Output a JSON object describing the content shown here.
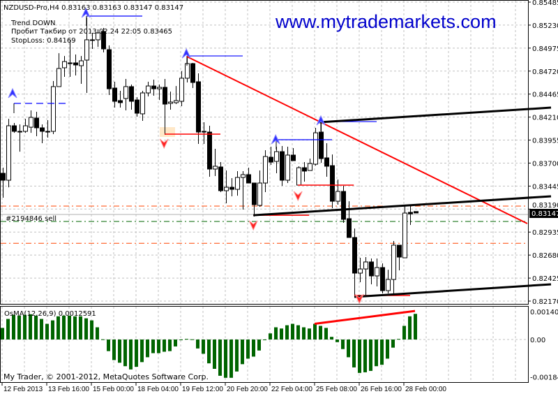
{
  "chart_data": {
    "type": "candlestick",
    "symbol_header": "NZDUSD-Pro,H4  0.83163 0.83163 0.83147 0.83147",
    "info_lines": [
      "Trend DOWN",
      "Пробит  Такбир от 2013.02.24 22:05 0.83465",
      "StopLoss: 0.84169"
    ],
    "watermark": "www.mytrademarkets.com",
    "copyright": "My Trader, © 2001-2012, MetaQuotes Software Corp.",
    "order_label": "#2194846 sell",
    "current_price": "0.83147",
    "price_ticks": [
      "0.85485",
      "0.85230",
      "0.84975",
      "0.84720",
      "0.84465",
      "0.84210",
      "0.83955",
      "0.83700",
      "0.83445",
      "0.83190",
      "0.82935",
      "0.82680",
      "0.82425",
      "0.82170"
    ],
    "price_range": [
      0.8217,
      0.85485
    ],
    "time_ticks": [
      {
        "bar": 0,
        "label": "12 Feb 2013"
      },
      {
        "bar": 8,
        "label": "13 Feb 16:00"
      },
      {
        "bar": 16,
        "label": "15 Feb 00:00"
      },
      {
        "bar": 24,
        "label": "18 Feb 04:00"
      },
      {
        "bar": 32,
        "label": "19 Feb 12:00"
      },
      {
        "bar": 40,
        "label": "20 Feb 20:00"
      },
      {
        "bar": 48,
        "label": "22 Feb 04:00"
      },
      {
        "bar": 56,
        "label": "25 Feb 08:00"
      },
      {
        "bar": 64,
        "label": "26 Feb 16:00"
      },
      {
        "bar": 72,
        "label": "28 Feb 00:00"
      }
    ],
    "grid": true,
    "colors": {
      "bull_body": "#ffffff",
      "bear_body": "#000000",
      "trendline": "#ff0000",
      "channel": "#000000",
      "level_blue": "#0000ff",
      "level_red": "#ff0000",
      "osma": "#006400",
      "dash_orange": "#ff4500",
      "dash_green": "#006400",
      "price_box": "#000000"
    },
    "ohlc": [
      [
        0.83587,
        0.83649,
        0.83316,
        0.8351
      ],
      [
        0.8351,
        0.84191,
        0.83432,
        0.84114
      ],
      [
        0.84114,
        0.84145,
        0.84036,
        0.84052
      ],
      [
        0.84052,
        0.84129,
        0.83827,
        0.84045
      ],
      [
        0.84052,
        0.84191,
        0.84036,
        0.84114
      ],
      [
        0.84098,
        0.84284,
        0.84036,
        0.84207
      ],
      [
        0.84199,
        0.84269,
        0.83998,
        0.84091
      ],
      [
        0.84091,
        0.84129,
        0.8392,
        0.84052
      ],
      [
        0.84052,
        0.84176,
        0.83982,
        0.84045
      ],
      [
        0.84052,
        0.8461,
        0.84021,
        0.84548
      ],
      [
        0.84548,
        0.84919,
        0.84548,
        0.84749
      ],
      [
        0.84757,
        0.84888,
        0.84656,
        0.84826
      ],
      [
        0.84811,
        0.85067,
        0.84656,
        0.84805
      ],
      [
        0.84811,
        0.84904,
        0.84672,
        0.84788
      ],
      [
        0.8478,
        0.84888,
        0.84579,
        0.84834
      ],
      [
        0.84842,
        0.85314,
        0.84478,
        0.85067
      ],
      [
        0.85067,
        0.85144,
        0.84966,
        0.8506
      ],
      [
        0.85067,
        0.85183,
        0.84989,
        0.85144
      ],
      [
        0.8516,
        0.85198,
        0.84927,
        0.84966
      ],
      [
        0.84958,
        0.85005,
        0.84455,
        0.84524
      ],
      [
        0.84532,
        0.84602,
        0.84315,
        0.84385
      ],
      [
        0.84393,
        0.84501,
        0.84315,
        0.8437
      ],
      [
        0.84416,
        0.84633,
        0.84284,
        0.84548
      ],
      [
        0.84548,
        0.84571,
        0.84292,
        0.84385
      ],
      [
        0.844,
        0.84431,
        0.84215,
        0.84253
      ],
      [
        0.84246,
        0.84501,
        0.84168,
        0.84478
      ],
      [
        0.84478,
        0.84602,
        0.84439,
        0.84555
      ],
      [
        0.84555,
        0.84625,
        0.84447,
        0.84524
      ],
      [
        0.84524,
        0.84571,
        0.844,
        0.8454
      ],
      [
        0.8454,
        0.84633,
        0.84013,
        0.84354
      ],
      [
        0.84362,
        0.84493,
        0.84292,
        0.84377
      ],
      [
        0.8437,
        0.84555,
        0.84354,
        0.84393
      ],
      [
        0.84385,
        0.84718,
        0.84331,
        0.84641
      ],
      [
        0.84641,
        0.84881,
        0.84594,
        0.84803
      ],
      [
        0.84803,
        0.84811,
        0.84532,
        0.84594
      ],
      [
        0.84602,
        0.84695,
        0.83913,
        0.84044
      ],
      [
        0.84052,
        0.84153,
        0.83913,
        0.84044
      ],
      [
        0.84044,
        0.84114,
        0.83549,
        0.83634
      ],
      [
        0.83634,
        0.83858,
        0.83556,
        0.83665
      ],
      [
        0.83657,
        0.83711,
        0.83378,
        0.83394
      ],
      [
        0.83394,
        0.83618,
        0.83254,
        0.83432
      ],
      [
        0.83432,
        0.83533,
        0.83332,
        0.83409
      ],
      [
        0.83409,
        0.83611,
        0.83339,
        0.83541
      ],
      [
        0.83541,
        0.83611,
        0.83185,
        0.83572
      ],
      [
        0.83572,
        0.83649,
        0.83479,
        0.83479
      ],
      [
        0.83479,
        0.83479,
        0.83107,
        0.83239
      ],
      [
        0.83231,
        0.83618,
        0.83216,
        0.83479
      ],
      [
        0.83479,
        0.83843,
        0.83378,
        0.83773
      ],
      [
        0.83765,
        0.83882,
        0.8368,
        0.83711
      ],
      [
        0.83719,
        0.83882,
        0.83587,
        0.83827
      ],
      [
        0.83827,
        0.83889,
        0.83448,
        0.8351
      ],
      [
        0.8351,
        0.83882,
        0.83479,
        0.83789
      ],
      [
        0.83789,
        0.83866,
        0.83727,
        0.83727
      ],
      [
        0.83456,
        0.83665,
        0.83456,
        0.83649
      ],
      [
        0.83649,
        0.83711,
        0.83494,
        0.83611
      ],
      [
        0.83618,
        0.8375,
        0.83618,
        0.83696
      ],
      [
        0.83688,
        0.84091,
        0.83672,
        0.84036
      ],
      [
        0.84044,
        0.84153,
        0.83703,
        0.8375
      ],
      [
        0.83758,
        0.8392,
        0.83549,
        0.83665
      ],
      [
        0.83672,
        0.83796,
        0.832,
        0.83277
      ],
      [
        0.83277,
        0.83518,
        0.83239,
        0.83386
      ],
      [
        0.83386,
        0.83448,
        0.83037,
        0.83076
      ],
      [
        0.83084,
        0.83277,
        0.82875,
        0.82875
      ],
      [
        0.82875,
        0.82975,
        0.82216,
        0.8248
      ],
      [
        0.8248,
        0.8265,
        0.82379,
        0.82526
      ],
      [
        0.82526,
        0.82658,
        0.82216,
        0.82604
      ],
      [
        0.82604,
        0.82642,
        0.82356,
        0.82449
      ],
      [
        0.82449,
        0.82642,
        0.82333,
        0.82542
      ],
      [
        0.82542,
        0.82588,
        0.82255,
        0.82286
      ],
      [
        0.82286,
        0.82518,
        0.82255,
        0.8241
      ],
      [
        0.8241,
        0.82836,
        0.82255,
        0.8279
      ],
      [
        0.8279,
        0.8279,
        0.82511,
        0.82658
      ],
      [
        0.8265,
        0.83223,
        0.8265,
        0.83146
      ],
      [
        0.83154,
        0.83239,
        0.83014,
        0.83138
      ],
      [
        0.83163,
        0.83163,
        0.83147,
        0.83147
      ]
    ],
    "trendlines": [
      {
        "kind": "trend",
        "from": [
          33,
          0.84881
        ],
        "to": [
          94,
          0.8303
        ]
      },
      {
        "kind": "channel",
        "from": [
          56.75,
          0.84153
        ],
        "to": [
          98.25,
          0.84315
        ]
      },
      {
        "kind": "channel",
        "from": [
          44.9,
          0.83122
        ],
        "to": [
          98.25,
          0.83332
        ]
      },
      {
        "kind": "channel",
        "from": [
          63,
          0.82216
        ],
        "to": [
          98.25,
          0.82356
        ]
      }
    ],
    "levels": [
      {
        "color": "blue",
        "from": 15,
        "to": 25,
        "price": 0.8533,
        "dashed": false
      },
      {
        "color": "blue",
        "from": 2,
        "to": 12,
        "price": 0.84362,
        "dashed": true
      },
      {
        "color": "blue",
        "from": 33,
        "to": 43,
        "price": 0.84888,
        "dashed": false
      },
      {
        "color": "blue",
        "from": 49,
        "to": 59,
        "price": 0.83959,
        "dashed": false
      },
      {
        "color": "blue",
        "from": 57,
        "to": 67,
        "price": 0.8416,
        "dashed": false
      },
      {
        "color": "red",
        "from": 29,
        "to": 39,
        "price": 0.84021,
        "dashed": false
      },
      {
        "color": "red",
        "from": 52.9,
        "to": 62.9,
        "price": 0.83456,
        "dashed": false
      },
      {
        "color": "red",
        "from": 44.9,
        "to": 54.9,
        "price": 0.83122,
        "dashed": false
      },
      {
        "color": "red",
        "from": 63,
        "to": 73,
        "price": 0.82232,
        "dashed": false
      }
    ],
    "arrows_up": [
      [
        1.75,
        0.84478
      ],
      [
        14.9,
        0.85369
      ],
      [
        32.9,
        0.84919
      ],
      [
        48.9,
        0.83966
      ],
      [
        57,
        0.84176
      ]
    ],
    "arrows_down": [
      [
        28.9,
        0.8392
      ],
      [
        44.9,
        0.83014
      ],
      [
        52.9,
        0.83339
      ],
      [
        63.9,
        0.822
      ]
    ],
    "hlines": [
      {
        "price": 0.83223,
        "style": "dashdot",
        "color": "orange"
      },
      {
        "price": 0.8313,
        "style": "solid",
        "color": "grey"
      },
      {
        "price": 0.83053,
        "style": "dashdot",
        "color": "green"
      },
      {
        "price": 0.82811,
        "style": "dashdot",
        "color": "orange"
      }
    ],
    "osma": {
      "label": "OsMA(12,26,9) 0.0012591",
      "ticks": [
        "0.001406",
        "0.00",
        "-0.00184"
      ],
      "range": [
        -0.00184,
        0.001406
      ],
      "values": [
        0.00057,
        0.00101,
        0.00121,
        0.00117,
        0.00121,
        0.00124,
        0.00117,
        0.00101,
        0.00077,
        0.00094,
        0.00114,
        0.00117,
        0.00117,
        0.00114,
        0.00114,
        0.00104,
        0.00094,
        0.0006,
        1e-05,
        -0.00057,
        -0.00101,
        -0.00114,
        -0.00131,
        -0.00147,
        -0.00134,
        -0.00111,
        -0.00087,
        -0.00067,
        -0.00067,
        -0.0006,
        -0.00057,
        -0.00034,
        -2e-05,
        3e-05,
        1e-05,
        -0.00044,
        -0.0007,
        -0.00117,
        -0.00144,
        -0.00178,
        -0.00188,
        -0.00188,
        -0.00157,
        -0.00121,
        -0.00094,
        -0.00084,
        -0.00054,
        -3e-05,
        0.0003,
        0.0006,
        0.00054,
        0.0007,
        0.00077,
        0.0007,
        0.0006,
        0.00054,
        0.00077,
        0.00067,
        0.00057,
        0.00013,
        -0.00013,
        -0.00047,
        -0.00087,
        -0.00137,
        -0.00164,
        -0.00161,
        -0.00154,
        -0.00131,
        -0.00124,
        -0.00094,
        -0.0004,
        3e-05,
        0.00067,
        0.00114,
        0.00126
      ],
      "divergence_line": {
        "from": [
          56,
          0.00077
        ],
        "to": [
          74,
          0.0014
        ]
      }
    }
  }
}
